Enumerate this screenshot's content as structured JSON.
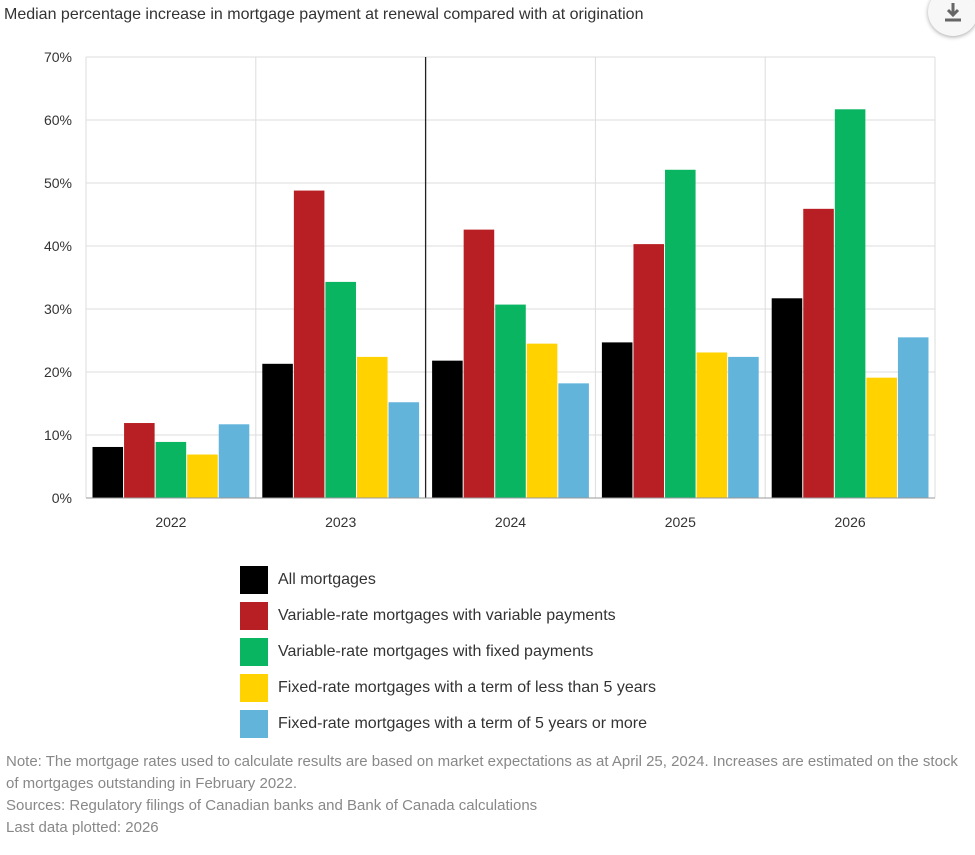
{
  "chart_data": {
    "type": "bar",
    "title": "Median percentage increase in mortgage payment at renewal compared with at origination",
    "categories": [
      "2022",
      "2023",
      "2024",
      "2025",
      "2026"
    ],
    "series": [
      {
        "name": "All mortgages",
        "color": "#000000",
        "values": [
          8.1,
          21.3,
          21.8,
          24.7,
          31.7
        ]
      },
      {
        "name": "Variable-rate mortgages with variable payments",
        "color": "#b81f24",
        "values": [
          11.9,
          48.8,
          42.6,
          40.3,
          45.9
        ]
      },
      {
        "name": "Variable-rate mortgages with fixed payments",
        "color": "#0ab562",
        "values": [
          8.9,
          34.3,
          30.7,
          52.1,
          61.7
        ]
      },
      {
        "name": "Fixed-rate mortgages with a term of less than 5 years",
        "color": "#ffd200",
        "values": [
          6.9,
          22.4,
          24.5,
          23.1,
          19.1
        ]
      },
      {
        "name": "Fixed-rate mortgages with a term of 5 years or more",
        "color": "#62b4db",
        "values": [
          11.7,
          15.2,
          18.2,
          22.4,
          25.5
        ]
      }
    ],
    "ylim": [
      0,
      70
    ],
    "yticks": [
      0,
      10,
      20,
      30,
      40,
      50,
      60,
      70
    ],
    "ytick_suffix": "%",
    "grid": true,
    "divider_after_category": "2023",
    "legend_position": "bottom-center"
  },
  "notes": [
    "Note: The mortgage rates used to calculate results are based on market expectations as at April 25, 2024. Increases are estimated on the stock of mortgages outstanding in February 2022.",
    "Sources: Regulatory filings of Canadian banks and Bank of Canada calculations",
    "Last data plotted: 2026"
  ],
  "download_icon": "download-icon"
}
